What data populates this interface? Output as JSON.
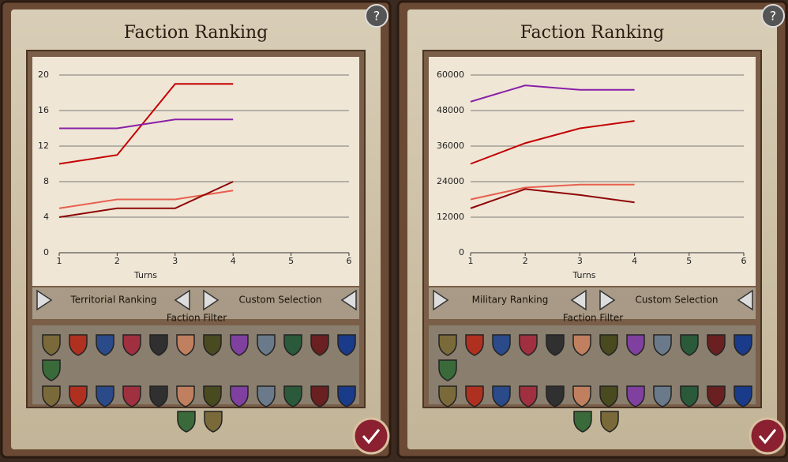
{
  "chart_data": [
    {
      "type": "line",
      "title": "Faction Ranking",
      "x_label": "Turns",
      "x": [
        1,
        2,
        3,
        4
      ],
      "xlim": [
        1,
        6
      ],
      "xticks": [
        1,
        2,
        3,
        4,
        5,
        6
      ],
      "ylim": [
        0,
        20
      ],
      "yticks": [
        0,
        4,
        8,
        12,
        16,
        20
      ],
      "grid": true,
      "series": [
        {
          "color": "#c40000",
          "values": [
            10,
            11,
            19,
            19
          ]
        },
        {
          "color": "#8a1fa8",
          "values": [
            14,
            14,
            15,
            15
          ]
        },
        {
          "color": "#e8604e",
          "values": [
            5,
            6,
            6,
            7
          ]
        },
        {
          "color": "#8e0606",
          "values": [
            4,
            5,
            5,
            8
          ]
        }
      ]
    },
    {
      "type": "line",
      "title": "Faction Ranking",
      "x_label": "Turns",
      "x": [
        1,
        2,
        3,
        4
      ],
      "xlim": [
        1,
        6
      ],
      "xticks": [
        1,
        2,
        3,
        4,
        5,
        6
      ],
      "ylim": [
        0,
        60000
      ],
      "yticks": [
        0,
        12000,
        24000,
        36000,
        48000,
        60000
      ],
      "grid": true,
      "series": [
        {
          "color": "#8a1fa8",
          "values": [
            51000,
            56500,
            55000,
            55000
          ]
        },
        {
          "color": "#c40000",
          "values": [
            30000,
            37000,
            42000,
            44500
          ]
        },
        {
          "color": "#e8604e",
          "values": [
            18000,
            22000,
            23000,
            23000
          ]
        },
        {
          "color": "#8e0606",
          "values": [
            15000,
            21500,
            19500,
            17000
          ]
        }
      ]
    }
  ],
  "panels": [
    {
      "help": "?",
      "ranking": "Territorial Ranking",
      "selection": "Custom Selection",
      "filter": "Faction Filter"
    },
    {
      "help": "?",
      "ranking": "Military Ranking",
      "selection": "Custom Selection",
      "filter": "Faction Filter"
    }
  ]
}
